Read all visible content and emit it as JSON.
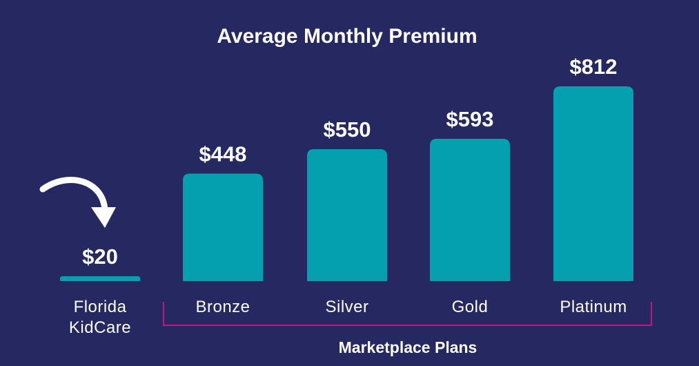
{
  "colors": {
    "background": "#252861",
    "bar": "#04A0AF",
    "bracket": "#C0187C",
    "text": "#FFFFFF"
  },
  "icons": {
    "arrow": "curved-arrow-icon"
  },
  "chart_data": {
    "type": "bar",
    "title": "Average Monthly Premium",
    "categories": [
      "Florida KidCare",
      "Bronze",
      "Silver",
      "Gold",
      "Platinum"
    ],
    "category_lines": [
      [
        "Florida",
        "KidCare"
      ],
      [
        "Bronze"
      ],
      [
        "Silver"
      ],
      [
        "Gold"
      ],
      [
        "Platinum"
      ]
    ],
    "values": [
      20,
      448,
      550,
      593,
      812
    ],
    "value_labels": [
      "$20",
      "$448",
      "$550",
      "$593",
      "$812"
    ],
    "ylim": [
      0,
      812
    ],
    "grid": false,
    "legend": "none",
    "group": {
      "label": "Marketplace Plans",
      "categories": [
        "Bronze",
        "Silver",
        "Gold",
        "Platinum"
      ]
    }
  }
}
